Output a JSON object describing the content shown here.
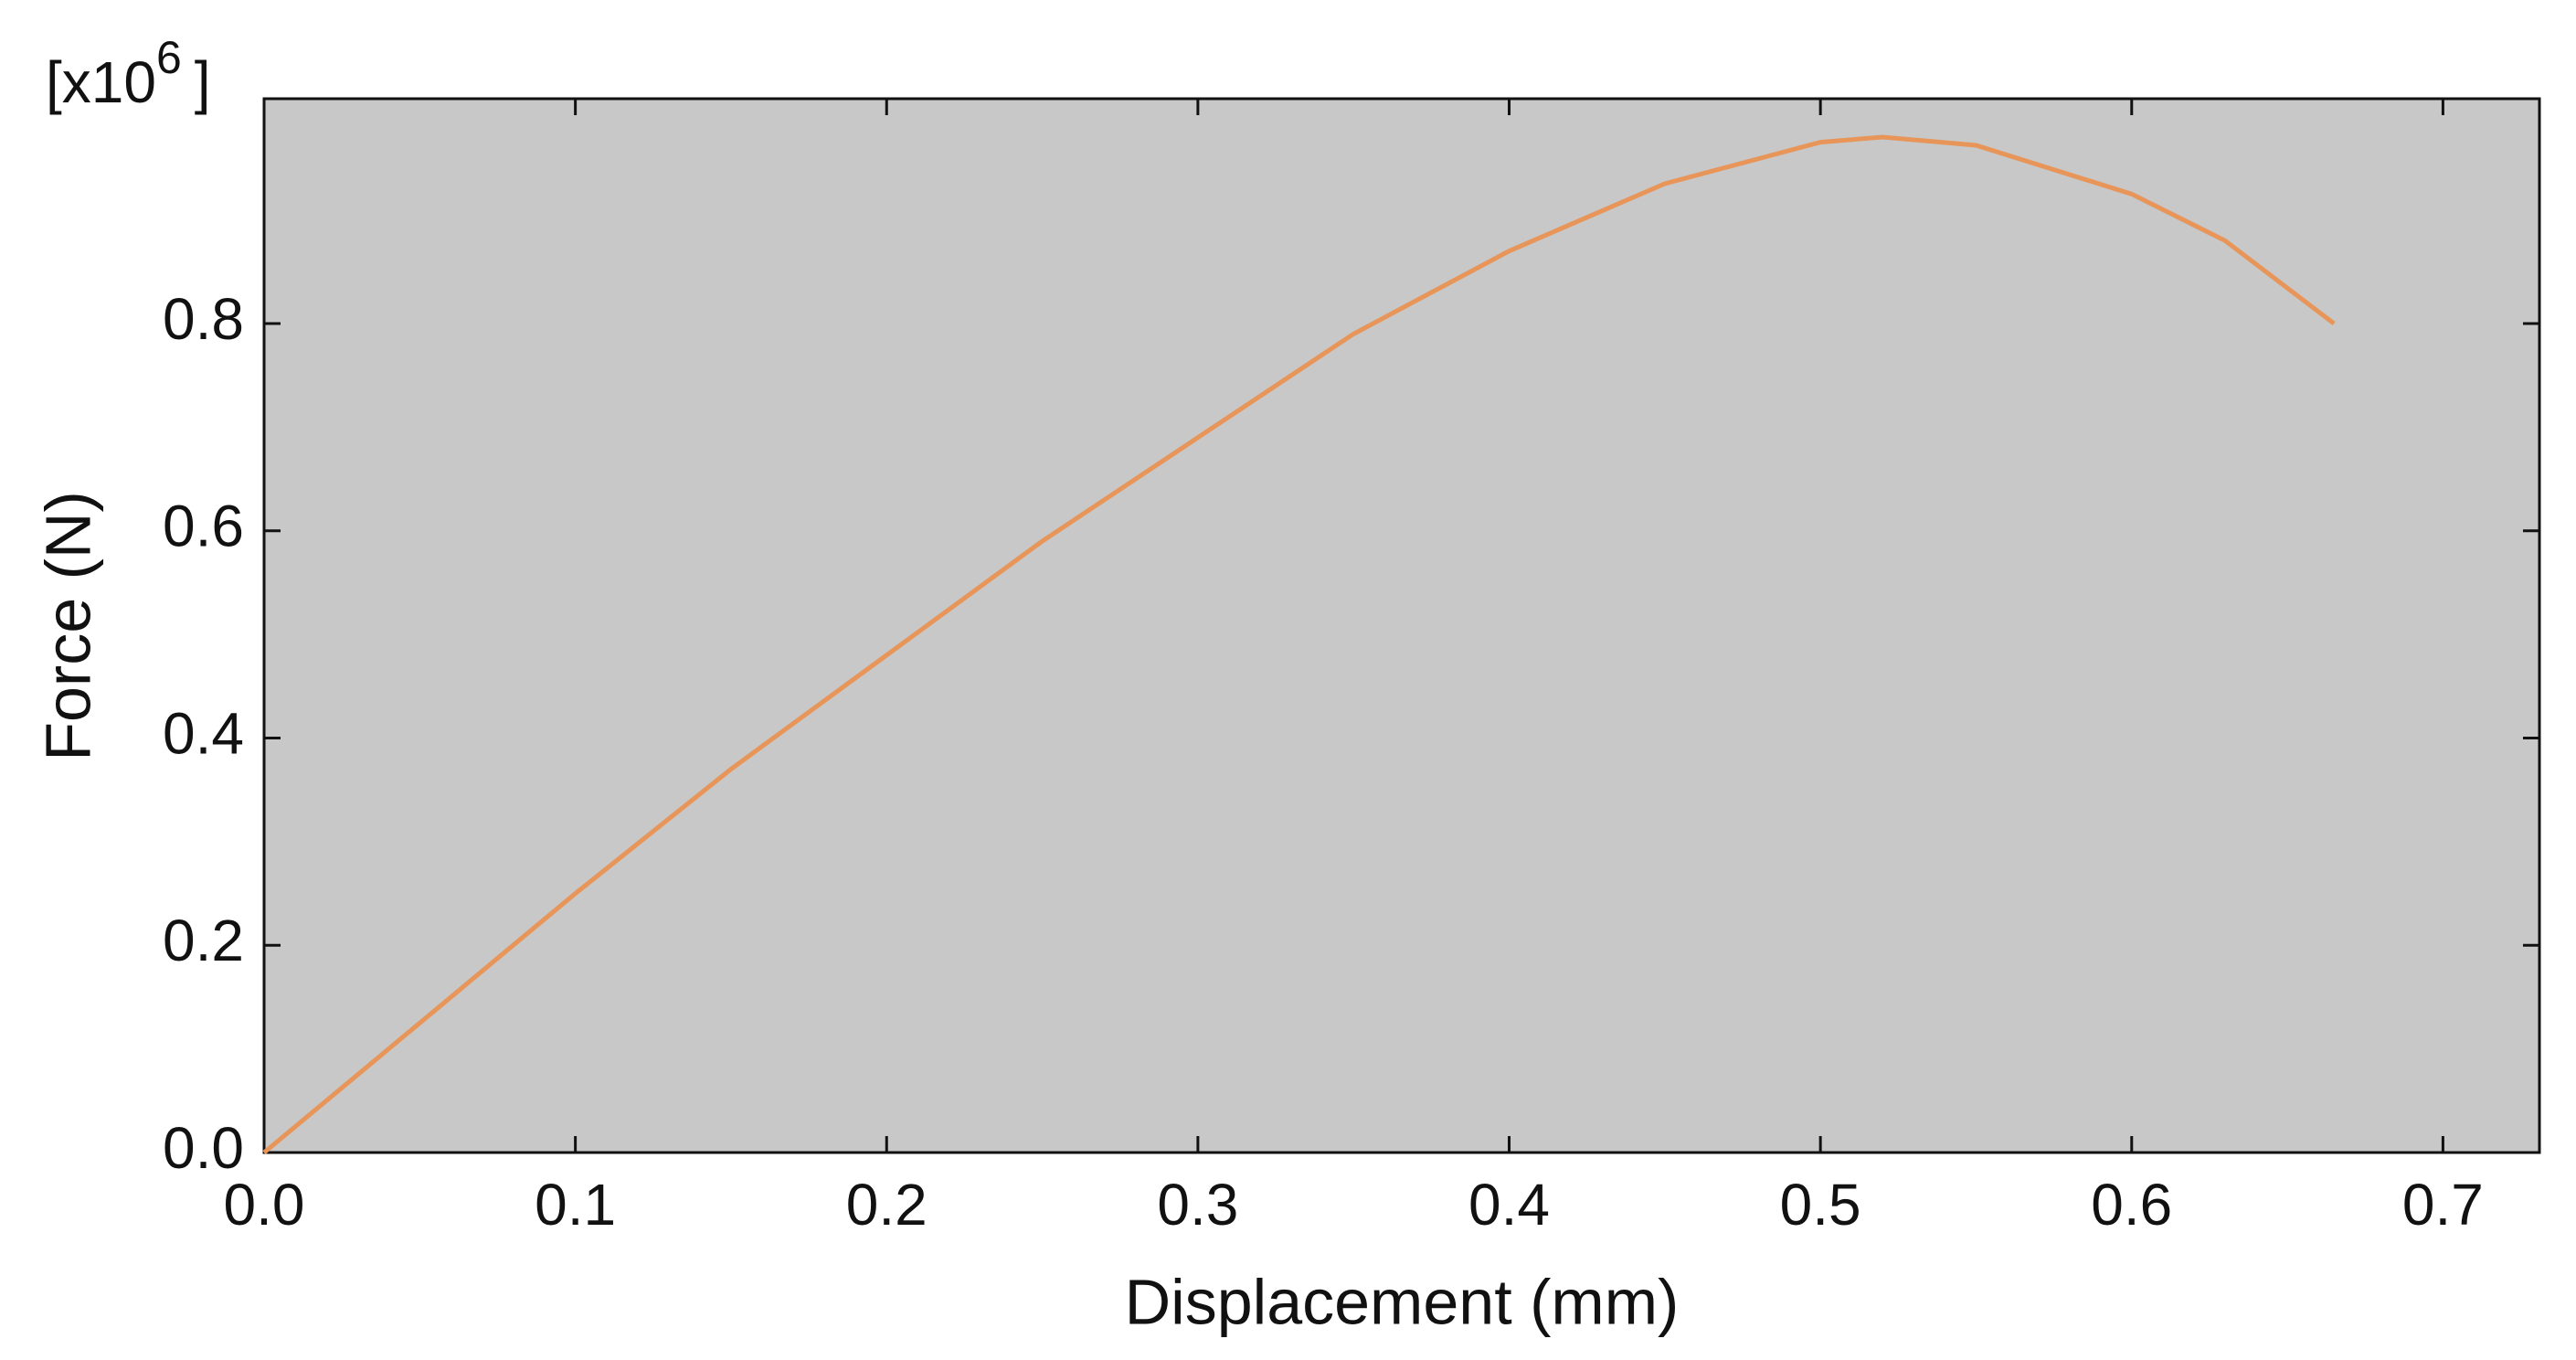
{
  "chart_data": {
    "type": "line",
    "x_label": "Displacement (mm)",
    "y_label": "Force (N)",
    "y_multiplier": {
      "base": "[x10",
      "exponent": "6",
      "close": "]"
    },
    "x": [
      0,
      0.05,
      0.1,
      0.15,
      0.2,
      0.25,
      0.3,
      0.35,
      0.4,
      0.45,
      0.5,
      0.52,
      0.55,
      0.6,
      0.63,
      0.665
    ],
    "series": [
      {
        "color": "#e8955a",
        "values": [
          0,
          0.125,
          0.25,
          0.37,
          0.48,
          0.59,
          0.69,
          0.79,
          0.87,
          0.935,
          0.975,
          0.98,
          0.972,
          0.925,
          0.88,
          0.8
        ]
      }
    ],
    "xlim": [
      0,
      0.731
    ],
    "ylim": [
      0,
      1.017
    ],
    "xticks": [
      {
        "value": 0,
        "label": "0.0"
      },
      0.1,
      0.2,
      0.3,
      0.4,
      0.5,
      0.6,
      0.7
    ],
    "yticks": [
      {
        "value": 0,
        "label": "0.0"
      },
      0.2,
      0.4,
      0.6,
      0.8
    ],
    "plot_background": "#c8c8c8",
    "grid": false
  }
}
